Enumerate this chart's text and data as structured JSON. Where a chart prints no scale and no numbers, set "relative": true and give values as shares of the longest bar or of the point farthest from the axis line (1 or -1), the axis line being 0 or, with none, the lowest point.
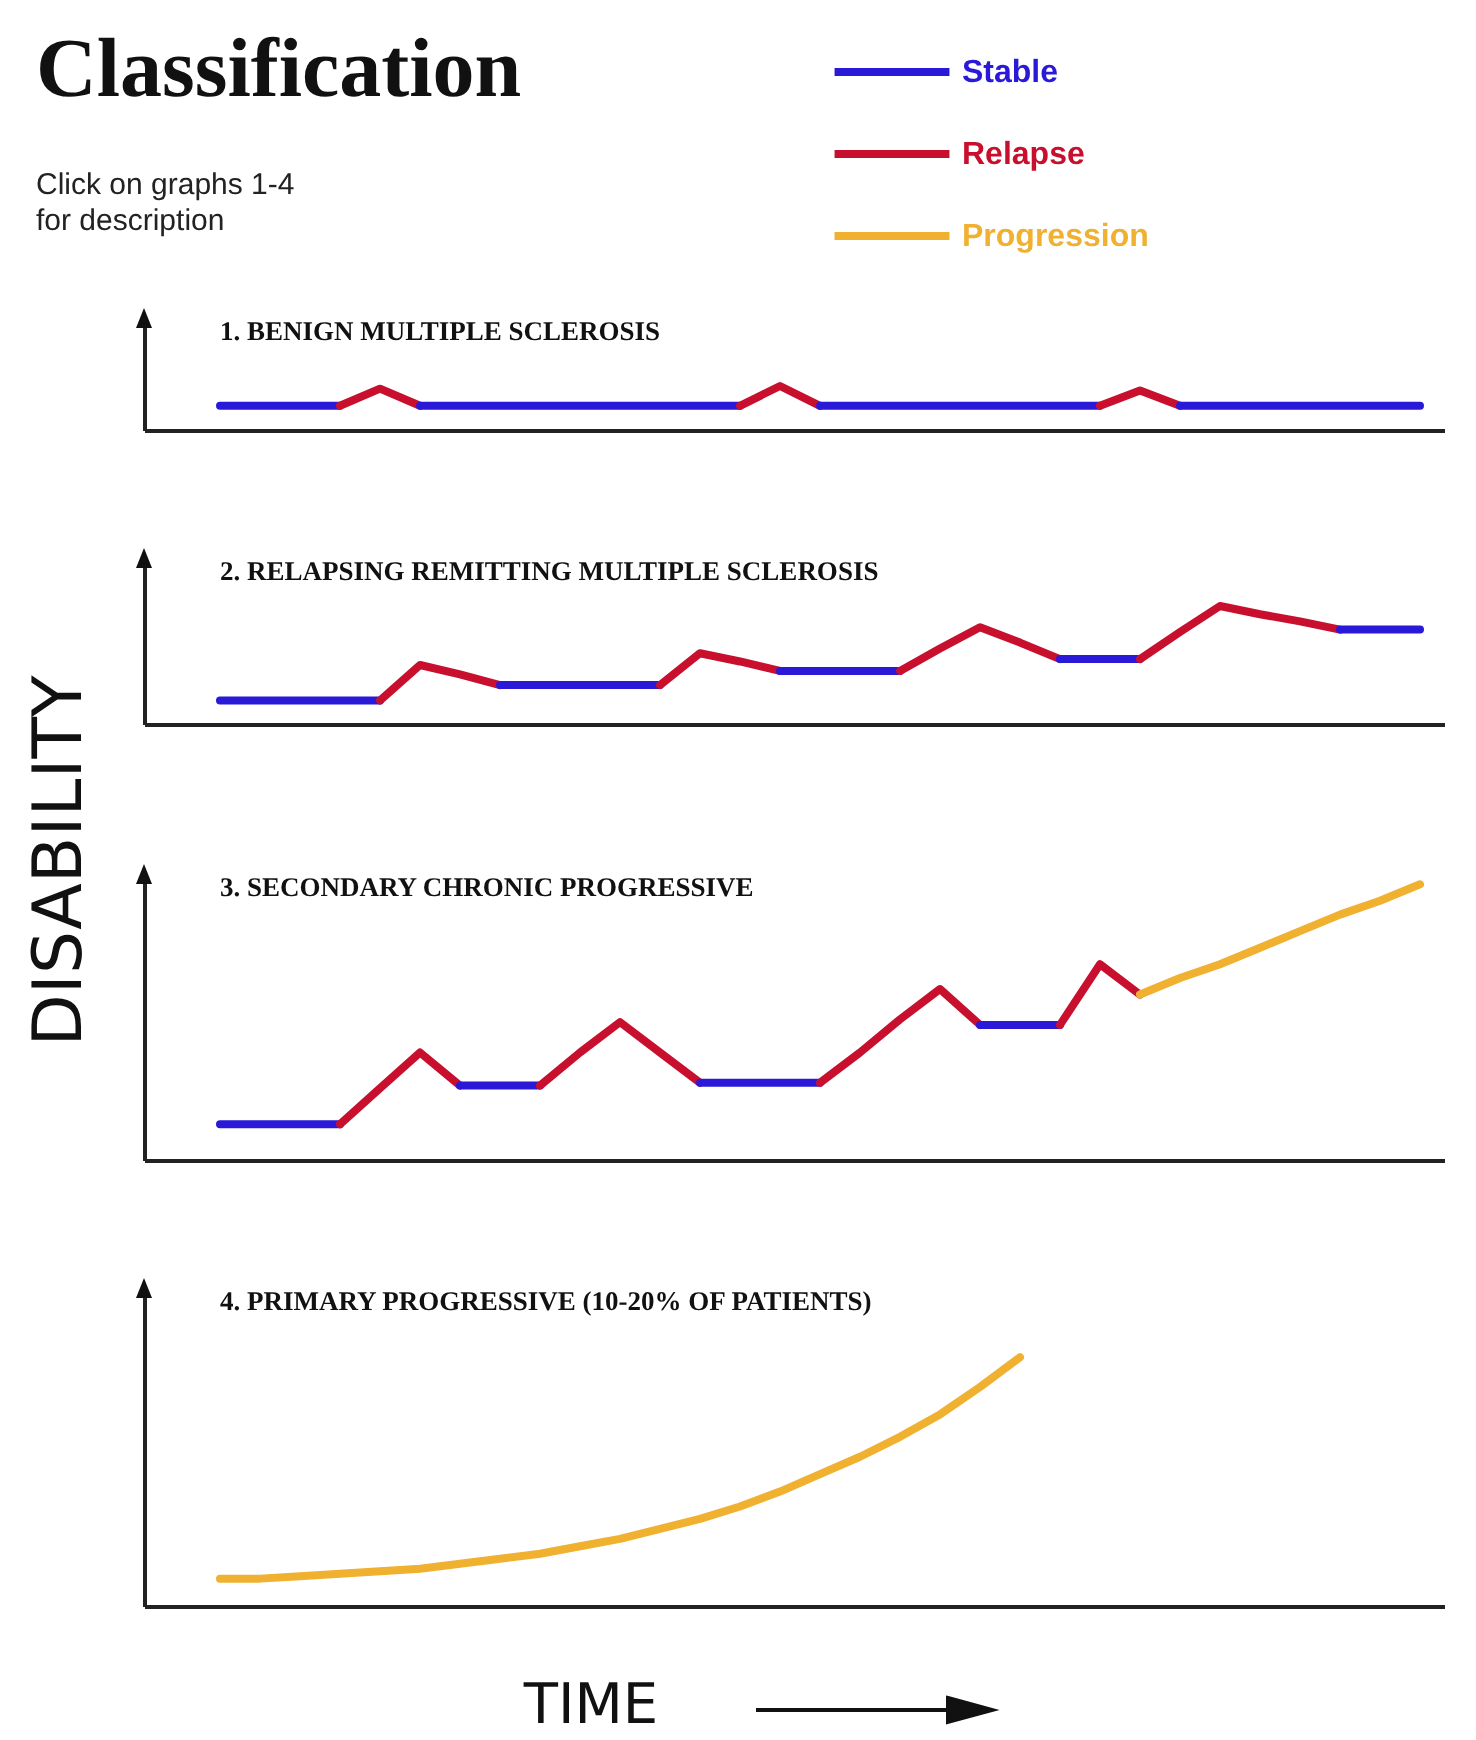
{
  "chart_data": [
    {
      "type": "line",
      "title": "Classification",
      "subtitle": "Click on graphs 1-4 for description",
      "annotations": [
        "1. BENIGN MULTIPLE SCLEROSIS"
      ],
      "relative": true,
      "line_style": "solid",
      "marker": "none",
      "categories": [
        null,
        null,
        null,
        null,
        null,
        null,
        null,
        null,
        null,
        null,
        null,
        null,
        null,
        null,
        null,
        null,
        null,
        null,
        null,
        null,
        null,
        null,
        null,
        null,
        null,
        null,
        null,
        null,
        null,
        null,
        null,
        null,
        null
      ],
      "series": [
        {
          "color": "#2a1ad8",
          "values": [
            null,
            null,
            0.55,
            0.55,
            0.55,
            0.55,
            null,
            null,
            null,
            null,
            null,
            null,
            null,
            null,
            null,
            null,
            null,
            null,
            null,
            null,
            null,
            null,
            null,
            null,
            null,
            null,
            null,
            null,
            null,
            null,
            null,
            null,
            null
          ]
        },
        {
          "color": "#c8102e",
          "values": [
            null,
            null,
            null,
            null,
            null,
            0.55,
            0.94,
            0.55,
            null,
            null,
            null,
            null,
            null,
            null,
            null,
            null,
            null,
            null,
            null,
            null,
            null,
            null,
            null,
            null,
            null,
            null,
            null,
            null,
            null,
            null,
            null,
            null,
            null
          ]
        },
        {
          "color": "#2a1ad8",
          "values": [
            null,
            null,
            null,
            null,
            null,
            null,
            null,
            0.55,
            0.55,
            0.55,
            0.55,
            0.55,
            0.55,
            0.55,
            0.55,
            0.55,
            null,
            null,
            null,
            null,
            null,
            null,
            null,
            null,
            null,
            null,
            null,
            null,
            null,
            null,
            null,
            null,
            null
          ]
        },
        {
          "color": "#c8102e",
          "values": [
            null,
            null,
            null,
            null,
            null,
            null,
            null,
            null,
            null,
            null,
            null,
            null,
            null,
            null,
            null,
            0.55,
            1,
            0.55,
            null,
            null,
            null,
            null,
            null,
            null,
            null,
            null,
            null,
            null,
            null,
            null,
            null,
            null,
            null
          ]
        },
        {
          "color": "#2a1ad8",
          "values": [
            null,
            null,
            null,
            null,
            null,
            null,
            null,
            null,
            null,
            null,
            null,
            null,
            null,
            null,
            null,
            null,
            null,
            0.55,
            0.55,
            0.55,
            0.55,
            0.55,
            0.55,
            0.55,
            0.55,
            null,
            null,
            null,
            null,
            null,
            null,
            null,
            null
          ]
        },
        {
          "color": "#c8102e",
          "values": [
            null,
            null,
            null,
            null,
            null,
            null,
            null,
            null,
            null,
            null,
            null,
            null,
            null,
            null,
            null,
            null,
            null,
            null,
            null,
            null,
            null,
            null,
            null,
            null,
            0.55,
            0.9,
            0.55,
            null,
            null,
            null,
            null,
            null,
            null
          ]
        },
        {
          "color": "#2a1ad8",
          "values": [
            null,
            null,
            null,
            null,
            null,
            null,
            null,
            null,
            null,
            null,
            null,
            null,
            null,
            null,
            null,
            null,
            null,
            null,
            null,
            null,
            null,
            null,
            null,
            null,
            null,
            null,
            0.55,
            0.55,
            0.55,
            0.55,
            0.55,
            0.55,
            0.55
          ]
        }
      ]
    },
    {
      "type": "line",
      "annotations": [
        "2. RELAPSING REMITTING MULTIPLE SCLEROSIS"
      ],
      "relative": true,
      "line_style": "solid",
      "marker": "none",
      "categories": [
        null,
        null,
        null,
        null,
        null,
        null,
        null,
        null,
        null,
        null,
        null,
        null,
        null,
        null,
        null,
        null,
        null,
        null,
        null,
        null,
        null,
        null,
        null,
        null,
        null,
        null,
        null,
        null,
        null,
        null,
        null,
        null,
        null
      ],
      "series": [
        {
          "color": "#2a1ad8",
          "values": [
            null,
            null,
            0.2,
            0.2,
            0.2,
            0.2,
            0.2,
            null,
            null,
            null,
            null,
            null,
            null,
            null,
            null,
            null,
            null,
            null,
            null,
            null,
            null,
            null,
            null,
            null,
            null,
            null,
            null,
            null,
            null,
            null,
            null,
            null,
            null
          ]
        },
        {
          "color": "#c8102e",
          "values": [
            null,
            null,
            null,
            null,
            null,
            null,
            0.2,
            0.5,
            0.42,
            0.33,
            null,
            null,
            null,
            null,
            null,
            null,
            null,
            null,
            null,
            null,
            null,
            null,
            null,
            null,
            null,
            null,
            null,
            null,
            null,
            null,
            null,
            null,
            null
          ]
        },
        {
          "color": "#2a1ad8",
          "values": [
            null,
            null,
            null,
            null,
            null,
            null,
            null,
            null,
            null,
            0.33,
            0.33,
            0.33,
            0.33,
            0.33,
            null,
            null,
            null,
            null,
            null,
            null,
            null,
            null,
            null,
            null,
            null,
            null,
            null,
            null,
            null,
            null,
            null,
            null,
            null
          ]
        },
        {
          "color": "#c8102e",
          "values": [
            null,
            null,
            null,
            null,
            null,
            null,
            null,
            null,
            null,
            null,
            null,
            null,
            null,
            0.33,
            0.6,
            0.53,
            0.45,
            null,
            null,
            null,
            null,
            null,
            null,
            null,
            null,
            null,
            null,
            null,
            null,
            null,
            null,
            null,
            null
          ]
        },
        {
          "color": "#2a1ad8",
          "values": [
            null,
            null,
            null,
            null,
            null,
            null,
            null,
            null,
            null,
            null,
            null,
            null,
            null,
            null,
            null,
            null,
            0.45,
            0.45,
            0.45,
            0.45,
            null,
            null,
            null,
            null,
            null,
            null,
            null,
            null,
            null,
            null,
            null,
            null,
            null
          ]
        },
        {
          "color": "#c8102e",
          "values": [
            null,
            null,
            null,
            null,
            null,
            null,
            null,
            null,
            null,
            null,
            null,
            null,
            null,
            null,
            null,
            null,
            null,
            null,
            null,
            0.45,
            0.64,
            0.82,
            0.69,
            0.55,
            null,
            null,
            null,
            null,
            null,
            null,
            null,
            null,
            null
          ]
        },
        {
          "color": "#2a1ad8",
          "values": [
            null,
            null,
            null,
            null,
            null,
            null,
            null,
            null,
            null,
            null,
            null,
            null,
            null,
            null,
            null,
            null,
            null,
            null,
            null,
            null,
            null,
            null,
            null,
            0.55,
            0.55,
            0.55,
            null,
            null,
            null,
            null,
            null,
            null,
            null
          ]
        },
        {
          "color": "#c8102e",
          "values": [
            null,
            null,
            null,
            null,
            null,
            null,
            null,
            null,
            null,
            null,
            null,
            null,
            null,
            null,
            null,
            null,
            null,
            null,
            null,
            null,
            null,
            null,
            null,
            null,
            null,
            0.55,
            0.78,
            1,
            0.93,
            0.87,
            0.8,
            null,
            null
          ]
        },
        {
          "color": "#2a1ad8",
          "values": [
            null,
            null,
            null,
            null,
            null,
            null,
            null,
            null,
            null,
            null,
            null,
            null,
            null,
            null,
            null,
            null,
            null,
            null,
            null,
            null,
            null,
            null,
            null,
            null,
            null,
            null,
            null,
            null,
            null,
            null,
            0.8,
            0.8,
            0.8
          ]
        }
      ]
    },
    {
      "type": "line",
      "annotations": [
        "3. SECONDARY CHRONIC PROGRESSIVE"
      ],
      "ylabel": "DISABILITY",
      "relative": true,
      "legend": "top right",
      "line_style": "solid",
      "marker": "none",
      "categories": [
        null,
        null,
        null,
        null,
        null,
        null,
        null,
        null,
        null,
        null,
        null,
        null,
        null,
        null,
        null,
        null,
        null,
        null,
        null,
        null,
        null,
        null,
        null,
        null,
        null,
        null,
        null,
        null,
        null,
        null,
        null,
        null,
        null
      ],
      "series": [
        {
          "name": "Stable",
          "color": "#2a1ad8",
          "values": [
            null,
            null,
            0.13,
            0.13,
            0.13,
            0.13,
            null,
            null,
            null,
            null,
            null,
            null,
            null,
            null,
            null,
            null,
            null,
            null,
            null,
            null,
            null,
            null,
            null,
            null,
            null,
            null,
            null,
            null,
            null,
            null,
            null,
            null,
            null
          ]
        },
        {
          "name": "Relapse",
          "color": "#c8102e",
          "values": [
            null,
            null,
            null,
            null,
            null,
            0.13,
            0.26,
            0.39,
            0.27,
            null,
            null,
            null,
            null,
            null,
            null,
            null,
            null,
            null,
            null,
            null,
            null,
            null,
            null,
            null,
            null,
            null,
            null,
            null,
            null,
            null,
            null,
            null,
            null
          ]
        },
        {
          "color": "#2a1ad8",
          "values": [
            null,
            null,
            null,
            null,
            null,
            null,
            null,
            null,
            0.27,
            0.27,
            0.27,
            null,
            null,
            null,
            null,
            null,
            null,
            null,
            null,
            null,
            null,
            null,
            null,
            null,
            null,
            null,
            null,
            null,
            null,
            null,
            null,
            null,
            null
          ]
        },
        {
          "color": "#c8102e",
          "values": [
            null,
            null,
            null,
            null,
            null,
            null,
            null,
            null,
            null,
            null,
            0.27,
            0.39,
            0.5,
            0.39,
            0.28,
            null,
            null,
            null,
            null,
            null,
            null,
            null,
            null,
            null,
            null,
            null,
            null,
            null,
            null,
            null,
            null,
            null,
            null
          ]
        },
        {
          "color": "#2a1ad8",
          "values": [
            null,
            null,
            null,
            null,
            null,
            null,
            null,
            null,
            null,
            null,
            null,
            null,
            null,
            null,
            0.28,
            0.28,
            0.28,
            0.28,
            null,
            null,
            null,
            null,
            null,
            null,
            null,
            null,
            null,
            null,
            null,
            null,
            null,
            null,
            null
          ]
        },
        {
          "color": "#c8102e",
          "values": [
            null,
            null,
            null,
            null,
            null,
            null,
            null,
            null,
            null,
            null,
            null,
            null,
            null,
            null,
            null,
            null,
            null,
            0.28,
            0.39,
            0.51,
            0.62,
            0.49,
            null,
            null,
            null,
            null,
            null,
            null,
            null,
            null,
            null,
            null,
            null
          ]
        },
        {
          "color": "#2a1ad8",
          "values": [
            null,
            null,
            null,
            null,
            null,
            null,
            null,
            null,
            null,
            null,
            null,
            null,
            null,
            null,
            null,
            null,
            null,
            null,
            null,
            null,
            null,
            0.49,
            0.49,
            0.49,
            null,
            null,
            null,
            null,
            null,
            null,
            null,
            null,
            null
          ]
        },
        {
          "color": "#c8102e",
          "values": [
            null,
            null,
            null,
            null,
            null,
            null,
            null,
            null,
            null,
            null,
            null,
            null,
            null,
            null,
            null,
            null,
            null,
            null,
            null,
            null,
            null,
            null,
            null,
            0.49,
            0.71,
            0.6,
            null,
            null,
            null,
            null,
            null,
            null,
            null
          ]
        },
        {
          "name": "Progression",
          "color": "#f0b030",
          "values": [
            null,
            null,
            null,
            null,
            null,
            null,
            null,
            null,
            null,
            null,
            null,
            null,
            null,
            null,
            null,
            null,
            null,
            null,
            null,
            null,
            null,
            null,
            null,
            null,
            null,
            0.6,
            0.66,
            0.71,
            0.77,
            0.83,
            0.89,
            0.94,
            1
          ]
        }
      ]
    },
    {
      "type": "line",
      "annotations": [
        "4. PRIMARY PROGRESSIVE (10-20% OF PATIENTS)"
      ],
      "xlabel": "TIME",
      "relative": true,
      "line_style": "solid",
      "marker": "none",
      "categories": [
        null,
        null,
        null,
        null,
        null,
        null,
        null,
        null,
        null,
        null,
        null,
        null,
        null,
        null,
        null,
        null,
        null,
        null,
        null,
        null,
        null,
        null,
        null,
        null,
        null,
        null,
        null,
        null,
        null,
        null,
        null,
        null,
        null
      ],
      "series": [
        {
          "color": "#f0b030",
          "values": [
            null,
            null,
            0.11,
            0.11,
            0.12,
            0.13,
            0.14,
            0.15,
            0.17,
            0.19,
            0.21,
            0.24,
            0.27,
            0.31,
            0.35,
            0.4,
            0.46,
            0.53,
            0.6,
            0.68,
            0.77,
            0.88,
            1,
            null,
            null,
            null,
            null,
            null,
            null,
            null,
            null,
            null,
            null
          ]
        }
      ]
    }
  ]
}
